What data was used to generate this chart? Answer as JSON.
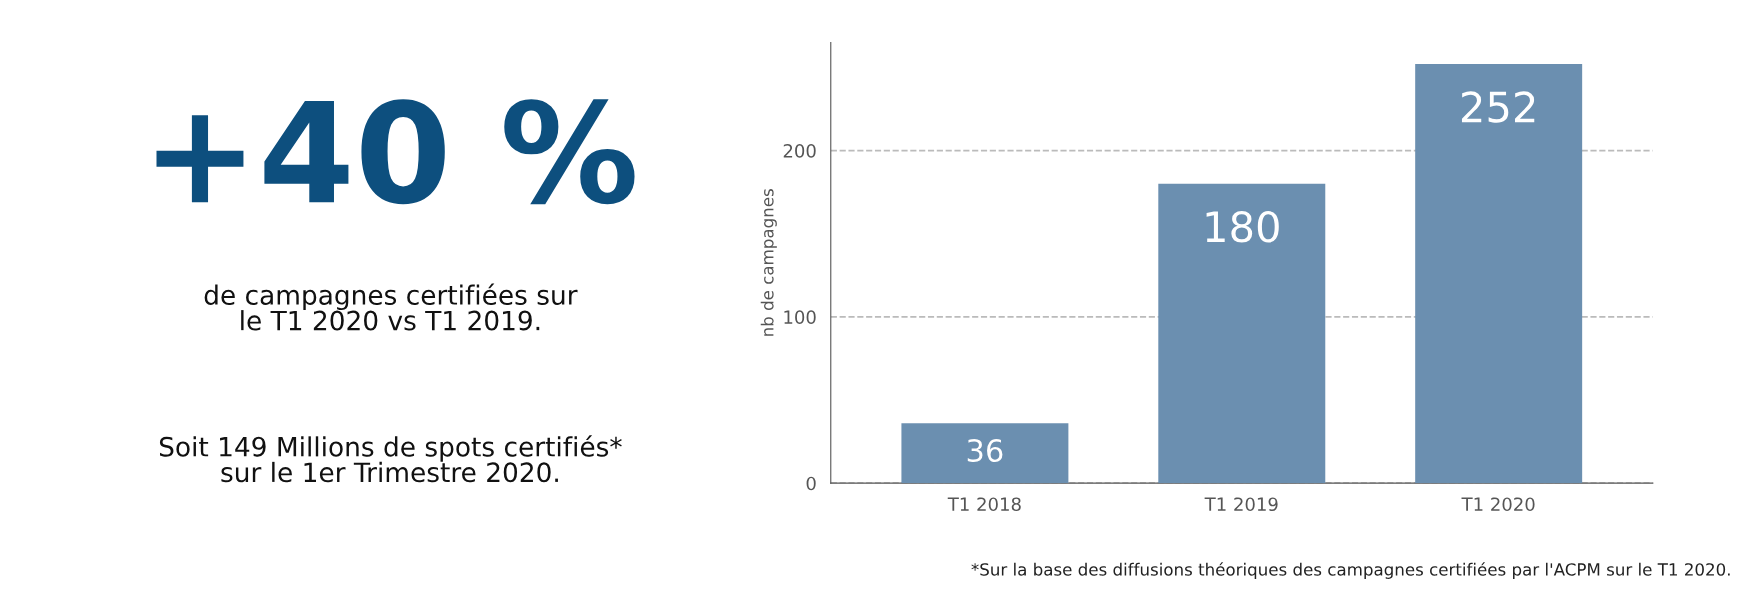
{
  "chart_data": [
    {
      "type": "other",
      "color": "#0d4f7e",
      "annotations": [
        "+40 %",
        "de campagnes certifiées sur\nle T1 2020 vs T1 2019.",
        "Soit 149 Millions de spots certifiés*\nsur le 1er Trimestre 2020."
      ]
    },
    {
      "type": "bar",
      "ylabel": "nb de campagnes",
      "categories": [
        "T1 2018",
        "T1 2019",
        "T1 2020"
      ],
      "values": [
        36,
        180,
        252
      ],
      "color": "#6b8fb0",
      "ylim": [
        0,
        265
      ],
      "yticks": [
        0,
        100,
        200
      ],
      "grid": "y",
      "line_style": "dashed",
      "data_labels": true,
      "legend": false,
      "annotations": [
        "*Sur la base des diffusions théoriques des campagnes certifiées par l'ACPM sur le T1 2020."
      ]
    }
  ]
}
